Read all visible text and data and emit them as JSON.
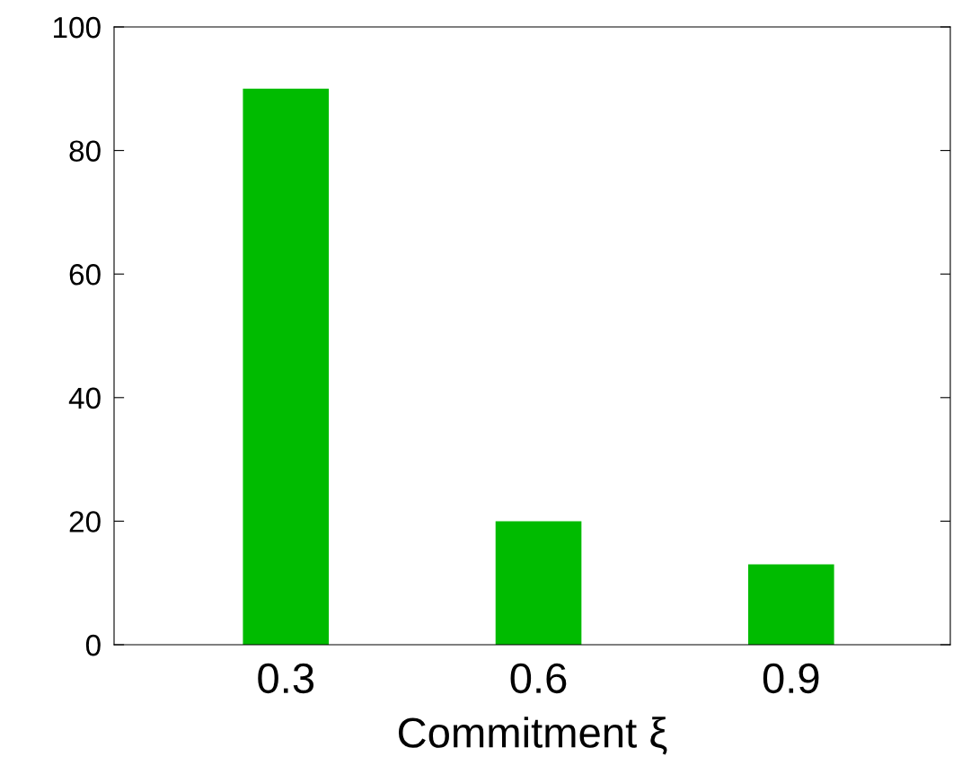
{
  "chart_data": {
    "type": "bar",
    "xlabel": "Commitment ξ",
    "categories": [
      "0.3",
      "0.6",
      "0.9"
    ],
    "values": [
      90,
      20,
      13
    ],
    "color": "#00bb00",
    "ylim": [
      0,
      100
    ],
    "yticks": [
      0,
      20,
      40,
      60,
      80,
      100
    ],
    "grid": false
  }
}
